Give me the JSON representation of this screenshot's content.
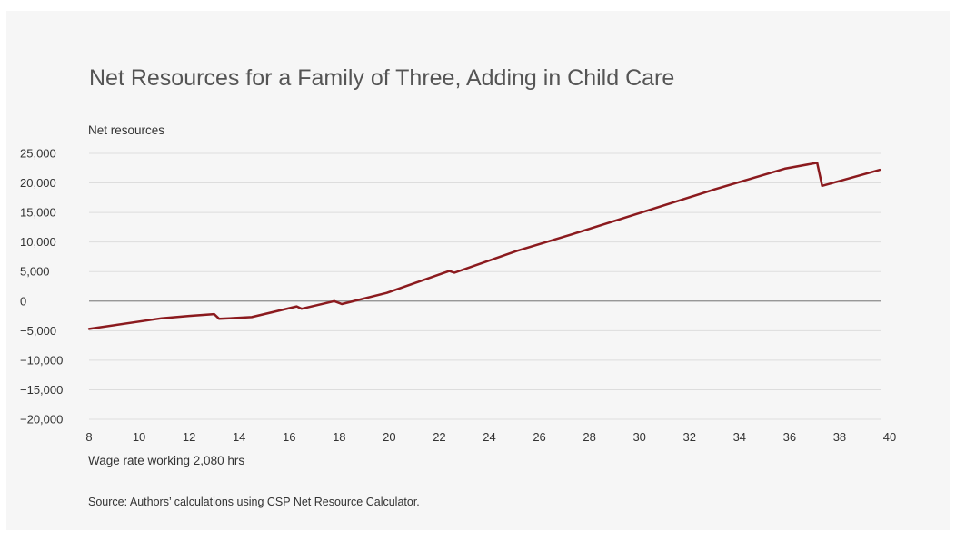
{
  "chart_data": {
    "type": "line",
    "title": "Net Resources for a Family of Three, Adding in Child Care",
    "ylabel": "Net resources",
    "xlabel": "Wage rate working 2,080 hrs",
    "source": "Source: Authors’ calculations using CSP Net Resource Calculator.",
    "xlim": [
      8,
      40
    ],
    "ylim": [
      -20000,
      25000
    ],
    "x_ticks": [
      8,
      10,
      12,
      14,
      16,
      18,
      20,
      22,
      24,
      26,
      28,
      30,
      32,
      34,
      36,
      38,
      40
    ],
    "y_ticks": [
      25000,
      20000,
      15000,
      10000,
      5000,
      0,
      -5000,
      -10000,
      -15000,
      -20000
    ],
    "x_tick_labels": [
      "8",
      "10",
      "12",
      "14",
      "16",
      "18",
      "20",
      "22",
      "24",
      "26",
      "28",
      "30",
      "32",
      "34",
      "36",
      "38",
      "40"
    ],
    "y_tick_labels": [
      "25,000",
      "20,000",
      "15,000",
      "10,000",
      "5,000",
      "0",
      "−5,000",
      "−10,000",
      "−15,000",
      "−20,000"
    ],
    "grid": true,
    "line_color": "#8b1a1e",
    "series": [
      {
        "x": [
          8,
          10.9,
          12,
          13,
          13.2,
          14.5,
          16.3,
          16.5,
          17.8,
          18.1,
          19.9,
          22.4,
          22.6,
          25.1,
          27.3,
          30,
          33,
          35.8,
          37.1,
          37.3,
          39.6
        ],
        "y": [
          -4700,
          -2900,
          -2500,
          -2200,
          -3000,
          -2700,
          -900,
          -1300,
          0,
          -500,
          1400,
          5100,
          4800,
          8500,
          11300,
          14900,
          18900,
          22400,
          23400,
          19500,
          22200
        ]
      }
    ]
  }
}
